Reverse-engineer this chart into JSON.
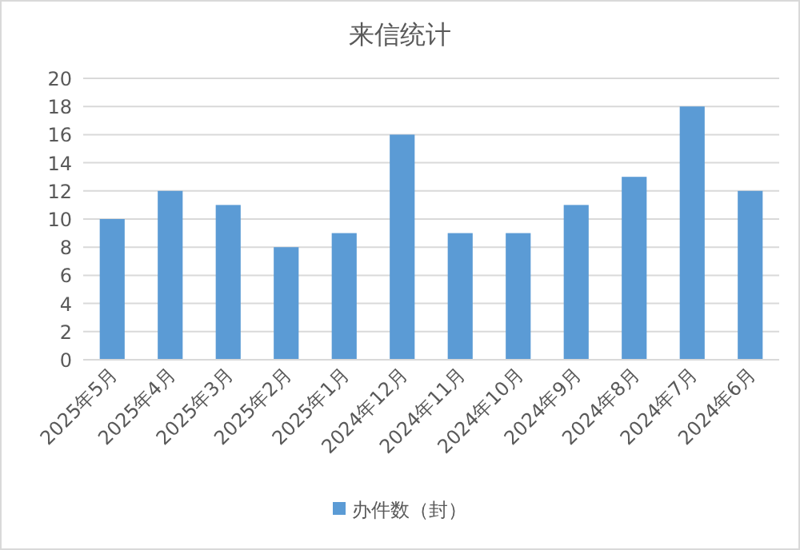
{
  "chart_data": {
    "type": "bar",
    "title": "来信统计",
    "categories": [
      "2025年5月",
      "2025年4月",
      "2025年3月",
      "2025年2月",
      "2025年1月",
      "2024年12月",
      "2024年11月",
      "2024年10月",
      "2024年9月",
      "2024年8月",
      "2024年7月",
      "2024年6月"
    ],
    "series": [
      {
        "name": "办件数（封）",
        "color": "#5b9bd5",
        "values": [
          10,
          12,
          11,
          8,
          9,
          16,
          9,
          9,
          11,
          13,
          18,
          12
        ]
      }
    ],
    "ylim": [
      0,
      20
    ],
    "yticks": [
      0,
      2,
      4,
      6,
      8,
      10,
      12,
      14,
      16,
      18,
      20
    ],
    "grid": "y",
    "legend": "bottom"
  }
}
